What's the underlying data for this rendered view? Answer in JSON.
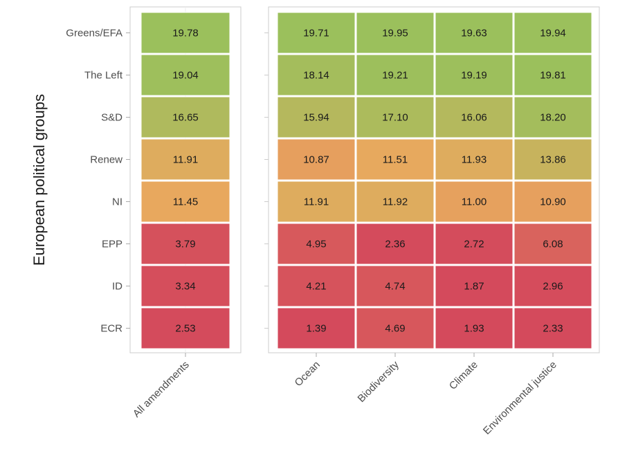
{
  "chart_data": {
    "type": "heatmap",
    "ylabel": "European political groups",
    "groups": [
      "Greens/EFA",
      "The Left",
      "S&D",
      "Renew",
      "NI",
      "EPP",
      "ID",
      "ECR"
    ],
    "panels": [
      {
        "categories": [
          "All amendments"
        ],
        "values": [
          [
            19.78
          ],
          [
            19.04
          ],
          [
            16.65
          ],
          [
            11.91
          ],
          [
            11.45
          ],
          [
            3.79
          ],
          [
            3.34
          ],
          [
            2.53
          ]
        ]
      },
      {
        "categories": [
          "Ocean",
          "Biodiversity",
          "Climate",
          "Environmental justice"
        ],
        "values": [
          [
            19.71,
            19.95,
            19.63,
            19.94
          ],
          [
            18.14,
            19.21,
            19.19,
            19.81
          ],
          [
            15.94,
            17.1,
            16.06,
            18.2
          ],
          [
            10.87,
            11.51,
            11.93,
            13.86
          ],
          [
            11.91,
            11.92,
            11.0,
            10.9
          ],
          [
            4.95,
            2.36,
            2.72,
            6.08
          ],
          [
            4.21,
            4.74,
            1.87,
            2.96
          ],
          [
            1.39,
            4.69,
            1.93,
            2.33
          ]
        ]
      }
    ],
    "display": [
      [
        "19.78"
      ],
      [
        "19.04"
      ],
      [
        "16.65"
      ],
      [
        "11.91"
      ],
      [
        "11.45"
      ],
      [
        "3.79"
      ],
      [
        "3.34"
      ],
      [
        "2.53"
      ]
    ],
    "display_right": [
      [
        "19.71",
        "19.95",
        "19.63",
        "19.94"
      ],
      [
        "18.14",
        "19.21",
        "19.19",
        "19.81"
      ],
      [
        "15.94",
        "17.10",
        "16.06",
        "18.20"
      ],
      [
        "10.87",
        "11.51",
        "11.93",
        "13.86"
      ],
      [
        "11.91",
        "11.92",
        "11.00",
        "10.90"
      ],
      [
        "4.95",
        "2.36",
        "2.72",
        "6.08"
      ],
      [
        "4.21",
        "4.74",
        "1.87",
        "2.96"
      ],
      [
        "1.39",
        "4.69",
        "1.93",
        "2.33"
      ]
    ],
    "color_scale": {
      "low": "#d44a5c",
      "mid": "#e8a95e",
      "high": "#9bc05c"
    },
    "grid": true,
    "legend": "none"
  }
}
